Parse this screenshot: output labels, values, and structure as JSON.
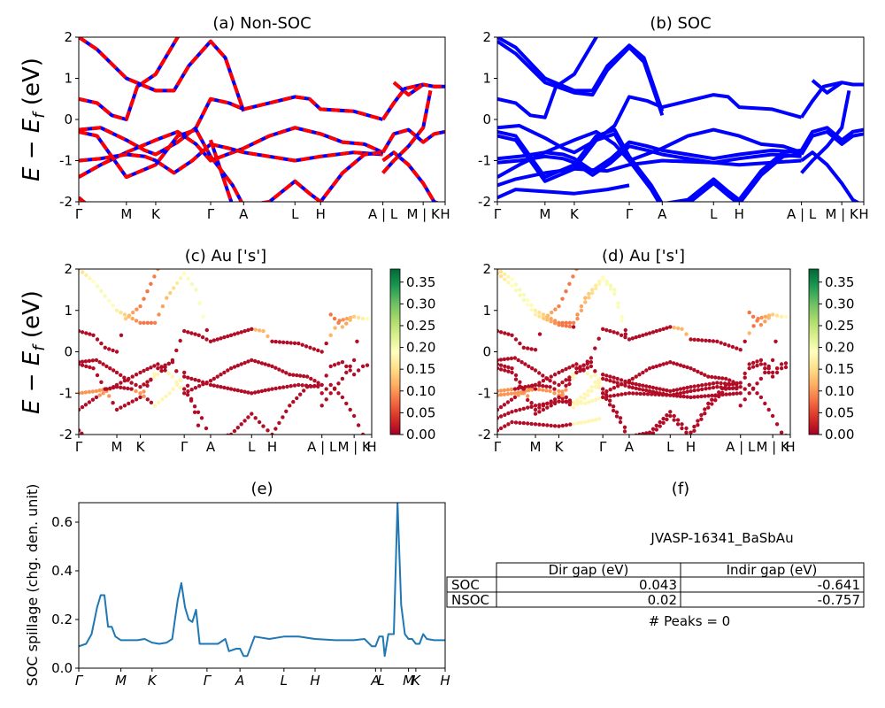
{
  "colors": {
    "band_nonsoc": "#ff0000",
    "band_soc": "#0000ff",
    "spillage_line": "#1f77b4",
    "cmap": "RdYlGn"
  },
  "k_labels": [
    "Γ",
    "M",
    "K",
    "Γ",
    "A",
    "L",
    "H",
    "A | L",
    "M | K",
    "H"
  ],
  "k_labels_e": [
    "Γ",
    "M",
    "K",
    "Γ",
    "A",
    "L",
    "H",
    "A",
    "L",
    "M",
    "K",
    "H"
  ],
  "panels": {
    "a": {
      "title": "(a) Non-SOC",
      "ylabel": "E − E_f (eV)"
    },
    "b": {
      "title": "(b) SOC"
    },
    "c": {
      "title": "(c)  Au ['s']",
      "ylabel": "E − E_f (eV)"
    },
    "d": {
      "title": "(d) Au ['s']"
    },
    "e": {
      "title": "(e)",
      "ylabel": "SOC spillage (chg. den. unit)"
    },
    "f": {
      "title": "(f)",
      "material": "JVASP-16341_BaSbAu",
      "table": {
        "headers": [
          "Dir gap (eV)",
          "Indir gap (eV)"
        ],
        "rows": [
          {
            "label": "SOC",
            "dir": "0.043",
            "indir": "-0.641"
          },
          {
            "label": "NSOC",
            "dir": "0.02",
            "indir": "-0.757"
          }
        ]
      },
      "peaks": "# Peaks = 0"
    }
  },
  "colorbar": {
    "ticks": [
      "0.00",
      "0.05",
      "0.10",
      "0.15",
      "0.20",
      "0.25",
      "0.30",
      "0.35"
    ],
    "range": [
      0,
      0.38
    ]
  },
  "chart_data": [
    {
      "type": "line",
      "panel": "a",
      "title": "(a) Non-SOC",
      "ylabel": "E − E_f (eV)",
      "ylim": [
        -2,
        2
      ],
      "xlim": [
        0,
        1
      ],
      "ticks_x": [
        0,
        0.13,
        0.21,
        0.36,
        0.45,
        0.59,
        0.66,
        0.83,
        0.94,
        1.0
      ],
      "yticks": [
        -2,
        -1,
        0,
        1,
        2
      ],
      "series": [
        {
          "x": [
            0,
            0.05,
            0.13,
            0.21,
            0.26,
            0.3,
            0.36,
            0.4,
            0.45
          ],
          "y": [
            2.0,
            1.7,
            1.0,
            0.7,
            0.7,
            1.3,
            1.9,
            1.5,
            0.2
          ]
        },
        {
          "x": [
            0,
            0.05,
            0.09,
            0.13,
            0.16,
            0.21,
            0.27,
            0.32
          ],
          "y": [
            0.5,
            0.4,
            0.1,
            0.0,
            0.8,
            1.1,
            2.0,
            2.6
          ]
        },
        {
          "x": [
            0,
            0.06,
            0.13,
            0.18,
            0.21,
            0.27,
            0.32,
            0.36,
            0.41,
            0.45,
            0.52,
            0.59,
            0.63,
            0.66,
            0.75,
            0.83
          ],
          "y": [
            -0.25,
            -0.2,
            -0.5,
            -0.75,
            -0.85,
            -0.55,
            -0.2,
            0.5,
            0.4,
            0.25,
            0.4,
            0.55,
            0.5,
            0.25,
            0.2,
            0.0
          ]
        },
        {
          "x": [
            0,
            0.06,
            0.13,
            0.21,
            0.27,
            0.32,
            0.36,
            0.45,
            0.52,
            0.59,
            0.66,
            0.72,
            0.78,
            0.83
          ],
          "y": [
            -1.4,
            -1.1,
            -0.8,
            -0.5,
            -0.3,
            -0.6,
            -1.0,
            -0.7,
            -0.4,
            -0.2,
            -0.35,
            -0.55,
            -0.6,
            -0.8
          ]
        },
        {
          "x": [
            0,
            0.06,
            0.13,
            0.18,
            0.21,
            0.26,
            0.31,
            0.36,
            0.41,
            0.45,
            0.52,
            0.59,
            0.66,
            0.75,
            0.83
          ],
          "y": [
            -1.0,
            -0.95,
            -0.85,
            -0.9,
            -1.0,
            -1.3,
            -1.0,
            -0.6,
            -0.7,
            -0.8,
            -0.9,
            -1.0,
            -0.9,
            -0.8,
            -0.85
          ]
        },
        {
          "x": [
            0,
            0.05,
            0.13,
            0.21,
            0.27,
            0.32,
            0.36,
            0.42,
            0.45,
            0.52,
            0.59,
            0.63,
            0.66,
            0.72,
            0.78,
            0.83
          ],
          "y": [
            -0.3,
            -0.4,
            -1.4,
            -1.1,
            -0.4,
            -0.25,
            -0.9,
            -1.6,
            -2.1,
            -2.0,
            -1.5,
            -1.8,
            -2.0,
            -1.3,
            -0.85,
            -0.8
          ]
        },
        {
          "x": [
            0,
            0.02
          ],
          "y": [
            -1.9,
            -2.05
          ]
        },
        {
          "x": [
            0.36,
            0.42
          ],
          "y": [
            -0.5,
            -2.1
          ]
        },
        {
          "x": [
            0.83,
            0.86,
            0.89,
            0.94,
            0.97,
            1.0
          ],
          "y": [
            0.0,
            0.4,
            0.75,
            0.85,
            0.8,
            0.8
          ]
        },
        {
          "x": [
            0.83,
            0.86,
            0.9,
            0.94,
            0.97,
            1.0
          ],
          "y": [
            -0.8,
            -0.35,
            -0.25,
            -0.55,
            -0.35,
            -0.3
          ]
        },
        {
          "x": [
            0.83,
            0.86,
            0.9,
            0.94,
            0.97,
            1.0
          ],
          "y": [
            -1.0,
            -0.8,
            -1.1,
            -1.55,
            -2.0,
            -2.1
          ]
        },
        {
          "x": [
            0.83,
            0.86,
            0.9,
            0.94,
            0.96
          ],
          "y": [
            -1.3,
            -1.0,
            -0.65,
            -0.2,
            0.7
          ]
        },
        {
          "x": [
            0.86,
            0.9,
            0.94
          ],
          "y": [
            0.9,
            0.6,
            0.85
          ]
        }
      ]
    },
    {
      "type": "line",
      "panel": "b",
      "title": "(b) SOC",
      "ylim": [
        -2,
        2
      ],
      "xlim": [
        0,
        1
      ],
      "ticks_x": [
        0,
        0.13,
        0.21,
        0.36,
        0.45,
        0.59,
        0.66,
        0.83,
        0.94,
        1.0
      ],
      "yticks": [
        -2,
        -1,
        0,
        1,
        2
      ],
      "series": [
        {
          "x": [
            0,
            0.05,
            0.13,
            0.21,
            0.26,
            0.3,
            0.36,
            0.4,
            0.45
          ],
          "y": [
            2.0,
            1.75,
            1.0,
            0.7,
            0.7,
            1.3,
            1.8,
            1.5,
            0.2
          ]
        },
        {
          "x": [
            0,
            0.05,
            0.13,
            0.21,
            0.26,
            0.3,
            0.36,
            0.4,
            0.45
          ],
          "y": [
            1.9,
            1.6,
            0.9,
            0.65,
            0.6,
            1.2,
            1.75,
            1.4,
            0.1
          ]
        },
        {
          "x": [
            0,
            0.05,
            0.09,
            0.13,
            0.16,
            0.21,
            0.27,
            0.32
          ],
          "y": [
            0.5,
            0.4,
            0.1,
            0.05,
            0.8,
            1.1,
            2.0,
            2.6
          ]
        },
        {
          "x": [
            0,
            0.06,
            0.13,
            0.18,
            0.21,
            0.27,
            0.32,
            0.36,
            0.41,
            0.45,
            0.52,
            0.59,
            0.63,
            0.66,
            0.75,
            0.83
          ],
          "y": [
            -0.2,
            -0.15,
            -0.45,
            -0.7,
            -0.8,
            -0.5,
            -0.15,
            0.55,
            0.45,
            0.3,
            0.45,
            0.6,
            0.55,
            0.3,
            0.25,
            0.05
          ]
        },
        {
          "x": [
            0,
            0.06,
            0.13,
            0.21,
            0.27,
            0.32,
            0.36,
            0.45,
            0.52,
            0.59,
            0.66,
            0.72,
            0.78,
            0.83
          ],
          "y": [
            -1.4,
            -1.1,
            -0.8,
            -0.5,
            -0.3,
            -0.6,
            -1.0,
            -0.7,
            -0.4,
            -0.25,
            -0.4,
            -0.6,
            -0.65,
            -0.8
          ]
        },
        {
          "x": [
            0,
            0.06,
            0.13,
            0.18,
            0.21,
            0.26,
            0.31,
            0.36,
            0.41,
            0.45,
            0.52,
            0.59,
            0.66,
            0.75,
            0.83
          ],
          "y": [
            -0.95,
            -0.9,
            -0.8,
            -0.85,
            -0.95,
            -1.25,
            -0.95,
            -0.55,
            -0.65,
            -0.75,
            -0.85,
            -0.95,
            -0.85,
            -0.75,
            -0.8
          ]
        },
        {
          "x": [
            0,
            0.06,
            0.13,
            0.18,
            0.21,
            0.26,
            0.31,
            0.36,
            0.41,
            0.45,
            0.52,
            0.59,
            0.66,
            0.75,
            0.83
          ],
          "y": [
            -1.05,
            -1.0,
            -0.9,
            -0.95,
            -1.05,
            -1.35,
            -1.05,
            -0.65,
            -0.75,
            -0.85,
            -0.95,
            -1.05,
            -0.95,
            -0.85,
            -0.9
          ]
        },
        {
          "x": [
            0,
            0.05,
            0.13,
            0.21,
            0.27,
            0.32,
            0.36,
            0.42,
            0.45,
            0.52,
            0.59,
            0.63,
            0.66,
            0.72,
            0.78,
            0.83
          ],
          "y": [
            -0.3,
            -0.4,
            -1.4,
            -1.1,
            -0.4,
            -0.25,
            -0.9,
            -1.6,
            -2.05,
            -1.95,
            -1.45,
            -1.75,
            -1.95,
            -1.25,
            -0.8,
            -0.75
          ]
        },
        {
          "x": [
            0,
            0.05,
            0.13,
            0.21,
            0.27,
            0.32,
            0.36,
            0.42,
            0.45,
            0.52,
            0.59,
            0.63,
            0.66,
            0.72,
            0.78,
            0.83
          ],
          "y": [
            -0.4,
            -0.5,
            -1.5,
            -1.2,
            -0.5,
            -0.35,
            -1.0,
            -1.7,
            -2.15,
            -2.05,
            -1.55,
            -1.85,
            -2.05,
            -1.35,
            -0.9,
            -0.85
          ]
        },
        {
          "x": [
            0,
            0.05,
            0.13,
            0.21,
            0.3,
            0.36,
            0.45,
            0.59,
            0.66,
            0.83
          ],
          "y": [
            -1.6,
            -1.45,
            -1.3,
            -1.2,
            -1.25,
            -1.1,
            -1.0,
            -1.05,
            -1.1,
            -1.0
          ]
        },
        {
          "x": [
            0,
            0.05,
            0.13,
            0.21,
            0.3,
            0.36
          ],
          "y": [
            -1.9,
            -1.7,
            -1.75,
            -1.8,
            -1.7,
            -1.6
          ]
        },
        {
          "x": [
            0.83,
            0.86,
            0.89,
            0.94,
            0.97,
            1.0
          ],
          "y": [
            0.05,
            0.45,
            0.8,
            0.9,
            0.85,
            0.85
          ]
        },
        {
          "x": [
            0.83,
            0.86,
            0.9,
            0.94,
            0.97,
            1.0
          ],
          "y": [
            -0.75,
            -0.3,
            -0.2,
            -0.5,
            -0.3,
            -0.25
          ]
        },
        {
          "x": [
            0.83,
            0.86,
            0.9,
            0.94,
            0.97,
            1.0
          ],
          "y": [
            -0.85,
            -0.4,
            -0.3,
            -0.6,
            -0.4,
            -0.35
          ]
        },
        {
          "x": [
            0.83,
            0.86,
            0.9,
            0.94,
            0.97,
            1.0
          ],
          "y": [
            -1.0,
            -0.8,
            -1.1,
            -1.55,
            -1.95,
            -2.1
          ]
        },
        {
          "x": [
            0.83,
            0.86,
            0.9,
            0.94,
            0.96
          ],
          "y": [
            -1.3,
            -1.0,
            -0.65,
            -0.2,
            0.7
          ]
        },
        {
          "x": [
            0.86,
            0.9,
            0.94
          ],
          "y": [
            0.95,
            0.65,
            0.9
          ]
        }
      ]
    },
    {
      "type": "scatter",
      "panel": "c",
      "title": "(c)  Au ['s']",
      "ylim": [
        -2,
        2
      ],
      "note": "Projected band weights plotted as colored dots on the non-SOC bands."
    },
    {
      "type": "scatter",
      "panel": "d",
      "title": "(d) Au ['s']",
      "ylim": [
        -2,
        2
      ],
      "note": "Projected band weights plotted as colored dots on the SOC bands."
    },
    {
      "type": "line",
      "panel": "e",
      "title": "(e)",
      "ylabel": "SOC spillage (chg. den. unit)",
      "xlim": [
        0,
        1
      ],
      "ylim": [
        0,
        0.68
      ],
      "yticks": [
        0.0,
        0.2,
        0.4,
        0.6
      ],
      "ticks_x": [
        0,
        0.115,
        0.2,
        0.35,
        0.44,
        0.56,
        0.645,
        0.81,
        0.825,
        0.9,
        0.92,
        1.0
      ],
      "x": [
        0,
        0.02,
        0.035,
        0.05,
        0.06,
        0.07,
        0.08,
        0.09,
        0.1,
        0.115,
        0.14,
        0.16,
        0.18,
        0.2,
        0.22,
        0.24,
        0.255,
        0.27,
        0.28,
        0.29,
        0.3,
        0.31,
        0.32,
        0.33,
        0.35,
        0.38,
        0.4,
        0.41,
        0.43,
        0.44,
        0.45,
        0.46,
        0.48,
        0.52,
        0.56,
        0.6,
        0.645,
        0.7,
        0.75,
        0.78,
        0.8,
        0.81,
        0.82,
        0.83,
        0.835,
        0.845,
        0.85,
        0.86,
        0.87,
        0.88,
        0.89,
        0.9,
        0.91,
        0.92,
        0.93,
        0.94,
        0.95,
        0.97,
        1.0
      ],
      "y": [
        0.09,
        0.1,
        0.14,
        0.25,
        0.3,
        0.3,
        0.17,
        0.17,
        0.13,
        0.115,
        0.115,
        0.115,
        0.12,
        0.105,
        0.1,
        0.105,
        0.12,
        0.28,
        0.35,
        0.25,
        0.2,
        0.19,
        0.24,
        0.1,
        0.1,
        0.1,
        0.12,
        0.07,
        0.08,
        0.08,
        0.05,
        0.05,
        0.13,
        0.12,
        0.13,
        0.13,
        0.12,
        0.115,
        0.115,
        0.12,
        0.09,
        0.09,
        0.13,
        0.13,
        0.05,
        0.14,
        0.14,
        0.14,
        0.68,
        0.26,
        0.14,
        0.12,
        0.12,
        0.1,
        0.1,
        0.14,
        0.12,
        0.115,
        0.115
      ]
    }
  ]
}
